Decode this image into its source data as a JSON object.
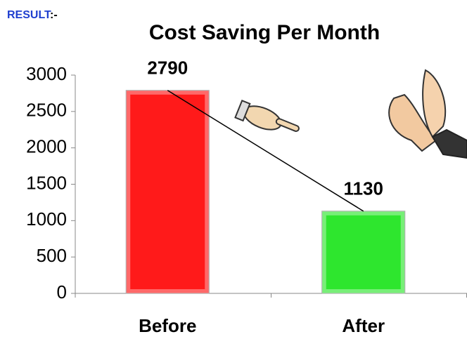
{
  "heading": {
    "label": "RESULT",
    "suffix": ":-"
  },
  "chart_data": {
    "type": "bar",
    "title": "Cost Saving Per Month",
    "categories": [
      "Before",
      "After"
    ],
    "values": [
      2790,
      1130
    ],
    "colors": [
      "#ff1a1a",
      "#2ee62e"
    ],
    "ylim": [
      0,
      3000
    ],
    "yticks": [
      0,
      500,
      1000,
      1500,
      2000,
      2500,
      3000
    ],
    "grid": false,
    "trend_line": true
  }
}
